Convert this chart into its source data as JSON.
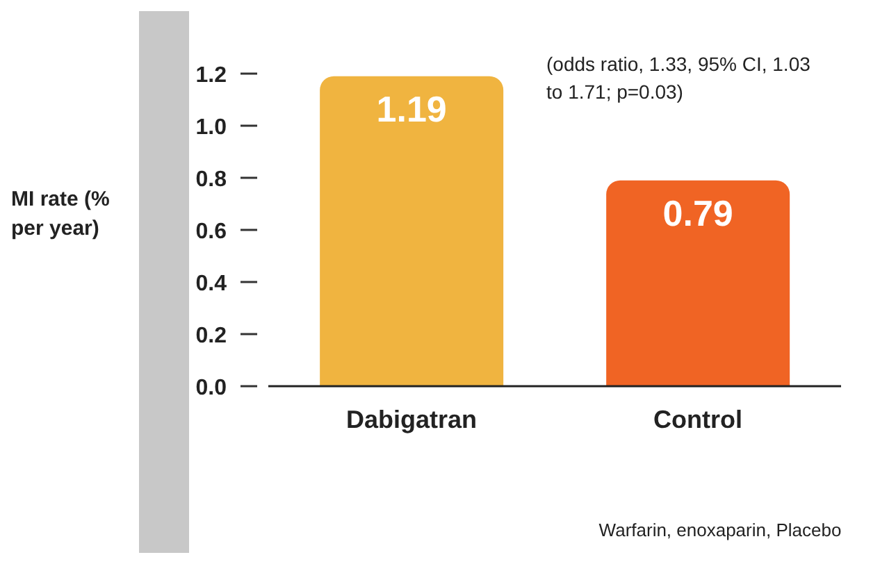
{
  "chart_data": {
    "type": "bar",
    "ylabel": "MI rate (% per year)",
    "categories": [
      "Dabigatran",
      "Control"
    ],
    "values": [
      1.19,
      0.79
    ],
    "colors": [
      "#f0b440",
      "#f06424"
    ],
    "ylim": [
      0,
      1.2
    ],
    "yticks": [
      {
        "value": 0,
        "label": "0.0"
      },
      0.2,
      0.4,
      0.6,
      0.8,
      {
        "value": 1,
        "label": "1.0"
      },
      1.2
    ],
    "data_labels": true,
    "grid": false,
    "legend": false,
    "annotations": [
      "(odds ratio, 1.33, 95% CI, 1.03 to 1.71; p=0.03)",
      "Warfarin, enoxaparin, Placebo"
    ]
  }
}
